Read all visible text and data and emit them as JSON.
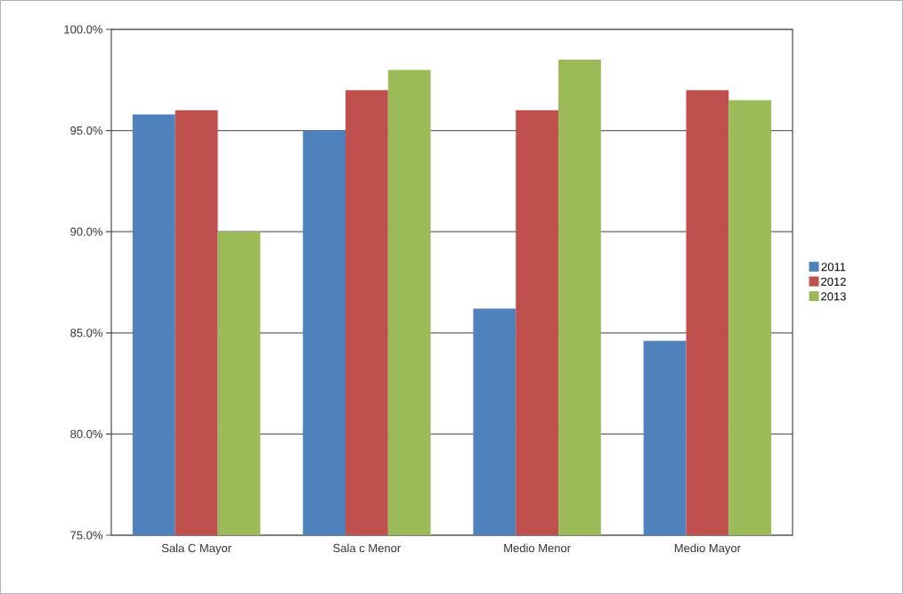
{
  "chart_data": {
    "type": "bar",
    "categories": [
      "Sala C Mayor",
      "Sala c Menor",
      "Medio Menor",
      "Medio Mayor"
    ],
    "series": [
      {
        "name": "2011",
        "color": "#4f81bd",
        "values": [
          95.8,
          95.0,
          86.2,
          84.6
        ]
      },
      {
        "name": "2012",
        "color": "#c0504d",
        "values": [
          96.0,
          97.0,
          96.0,
          97.0
        ]
      },
      {
        "name": "2013",
        "color": "#9bbb59",
        "values": [
          90.0,
          98.0,
          98.5,
          96.5
        ]
      }
    ],
    "ylim": [
      75,
      100
    ],
    "yticks": [
      {
        "value": 75,
        "label": "75.0%"
      },
      {
        "value": 80,
        "label": "80.0%"
      },
      {
        "value": 85,
        "label": "85.0%"
      },
      {
        "value": 90,
        "label": "90.0%"
      },
      {
        "value": 95,
        "label": "95.0%"
      },
      {
        "value": 100,
        "label": "100.0%"
      }
    ],
    "grid": "y",
    "legend": "right"
  }
}
